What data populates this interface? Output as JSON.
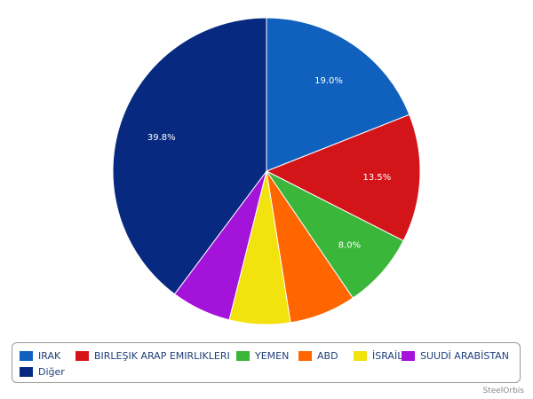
{
  "chart_data": {
    "type": "pie",
    "start": "12 o'clock",
    "direction": "clockwise",
    "slices": [
      {
        "label": "IRAK",
        "value": 19.0,
        "value_label": "19.0%",
        "color": "#1060bd"
      },
      {
        "label": "BIRLEŞIK ARAP EMIRLIKLERI",
        "value": 13.5,
        "value_label": "13.5%",
        "color": "#d3151a"
      },
      {
        "label": "YEMEN",
        "value": 8.0,
        "value_label": "8.0%",
        "color": "#3ab63a"
      },
      {
        "label": "ABD",
        "value": 7.0,
        "value_label": "",
        "color": "#ff6600"
      },
      {
        "label": "İSRAİL",
        "value": 6.4,
        "value_label": "",
        "color": "#f2e20e"
      },
      {
        "label": "SUUDİ ARABİSTAN",
        "value": 6.3,
        "value_label": "",
        "color": "#a313d9"
      },
      {
        "label": "Diğer",
        "value": 39.8,
        "value_label": "39.8%",
        "color": "#072a80"
      }
    ],
    "legend_position": "bottom"
  },
  "watermark": "SteelOrbis"
}
